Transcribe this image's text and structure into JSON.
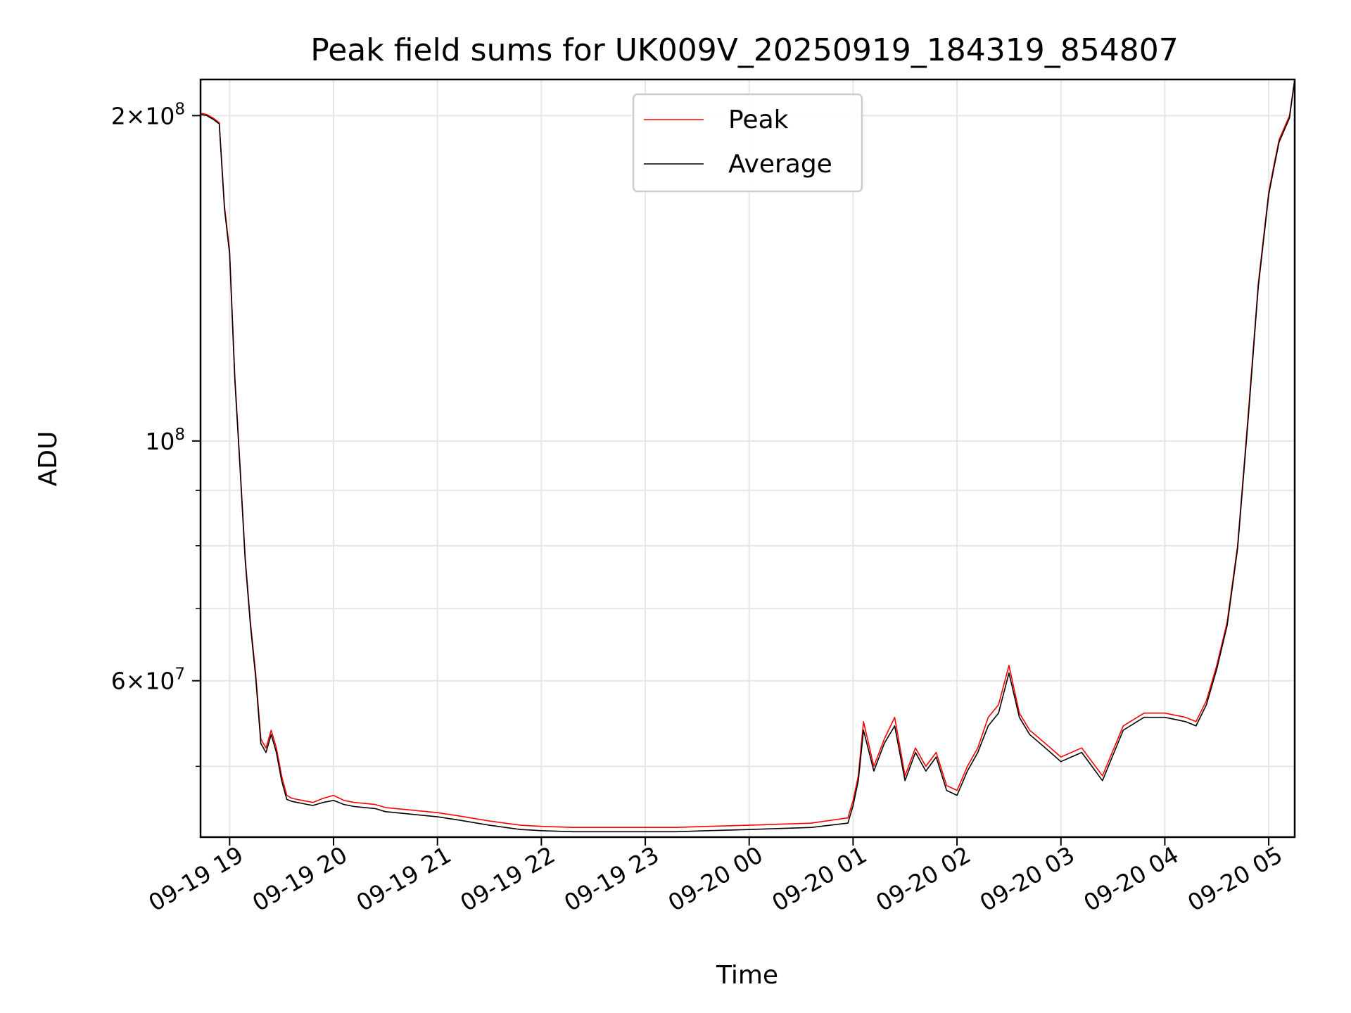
{
  "chart_data": {
    "type": "line",
    "title": "Peak field sums for UK009V_20250919_184319_854807",
    "xlabel": "Time",
    "ylabel": "ADU",
    "yscale": "log",
    "ylim": [
      43000000,
      216000000
    ],
    "xlim_hours": [
      18.72,
      29.25
    ],
    "grid": true,
    "legend_position": "upper center",
    "x_ticks": [
      {
        "label": "09-19 19",
        "hour": 19
      },
      {
        "label": "09-19 20",
        "hour": 20
      },
      {
        "label": "09-19 21",
        "hour": 21
      },
      {
        "label": "09-19 22",
        "hour": 22
      },
      {
        "label": "09-19 23",
        "hour": 23
      },
      {
        "label": "09-20 00",
        "hour": 24
      },
      {
        "label": "09-20 01",
        "hour": 25
      },
      {
        "label": "09-20 02",
        "hour": 26
      },
      {
        "label": "09-20 03",
        "hour": 27
      },
      {
        "label": "09-20 04",
        "hour": 28
      },
      {
        "label": "09-20 05",
        "hour": 29
      }
    ],
    "y_ticks_major": [
      {
        "value": 200000000,
        "mantissa": "2",
        "exponent": "8",
        "labeled": true
      },
      {
        "value": 100000000,
        "mantissa": "",
        "exponent": "8",
        "labeled": true
      },
      {
        "value": 60000000,
        "mantissa": "6",
        "exponent": "7",
        "labeled": true
      }
    ],
    "y_ticks_minor": [
      50000000,
      70000000,
      80000000,
      90000000
    ],
    "series": [
      {
        "name": "Peak",
        "color": "#ff0000",
        "hours": [
          18.72,
          18.78,
          18.84,
          18.9,
          18.95,
          19.0,
          19.05,
          19.1,
          19.15,
          19.2,
          19.25,
          19.3,
          19.35,
          19.4,
          19.45,
          19.5,
          19.55,
          19.6,
          19.65,
          19.7,
          19.75,
          19.8,
          19.9,
          20.0,
          20.1,
          20.2,
          20.3,
          20.4,
          20.5,
          20.6,
          20.7,
          20.8,
          21.0,
          21.2,
          21.5,
          21.8,
          22.0,
          22.3,
          22.6,
          23.0,
          23.3,
          23.6,
          24.0,
          24.3,
          24.6,
          24.95,
          25.0,
          25.05,
          25.1,
          25.2,
          25.3,
          25.4,
          25.5,
          25.6,
          25.7,
          25.8,
          25.9,
          26.0,
          26.1,
          26.2,
          26.3,
          26.4,
          26.5,
          26.6,
          26.7,
          26.8,
          26.9,
          27.0,
          27.2,
          27.4,
          27.6,
          27.8,
          28.0,
          28.2,
          28.3,
          28.4,
          28.5,
          28.6,
          28.7,
          28.8,
          28.9,
          29.0,
          29.05,
          29.1,
          29.2,
          29.25
        ],
        "values": [
          201000000,
          200500000,
          199000000,
          197000000,
          165000000,
          150000000,
          115000000,
          95000000,
          78000000,
          68000000,
          61000000,
          53000000,
          52000000,
          54000000,
          52000000,
          49000000,
          47000000,
          46700000,
          46600000,
          46500000,
          46400000,
          46300000,
          46700000,
          47000000,
          46500000,
          46300000,
          46200000,
          46100000,
          45800000,
          45700000,
          45600000,
          45500000,
          45300000,
          45000000,
          44500000,
          44100000,
          44000000,
          43900000,
          43900000,
          43900000,
          43900000,
          44000000,
          44100000,
          44200000,
          44300000,
          44800000,
          46500000,
          49000000,
          55000000,
          50000000,
          53000000,
          55500000,
          49000000,
          52000000,
          50000000,
          51500000,
          48000000,
          47500000,
          50000000,
          52000000,
          55500000,
          57000000,
          62000000,
          56000000,
          54000000,
          53000000,
          52000000,
          51000000,
          52000000,
          49000000,
          54500000,
          56000000,
          56000000,
          55500000,
          55000000,
          57500000,
          62000000,
          68000000,
          80000000,
          105000000,
          140000000,
          170000000,
          180000000,
          190000000,
          200000000,
          216000000
        ]
      },
      {
        "name": "Average",
        "color": "#000000",
        "hours": [
          18.72,
          18.78,
          18.84,
          18.9,
          18.95,
          19.0,
          19.05,
          19.1,
          19.15,
          19.2,
          19.25,
          19.3,
          19.35,
          19.4,
          19.45,
          19.5,
          19.55,
          19.6,
          19.65,
          19.7,
          19.75,
          19.8,
          19.9,
          20.0,
          20.1,
          20.2,
          20.3,
          20.4,
          20.5,
          20.6,
          20.7,
          20.8,
          21.0,
          21.2,
          21.5,
          21.8,
          22.0,
          22.3,
          22.6,
          23.0,
          23.3,
          23.6,
          24.0,
          24.3,
          24.6,
          24.95,
          25.0,
          25.05,
          25.1,
          25.2,
          25.3,
          25.4,
          25.5,
          25.6,
          25.7,
          25.8,
          25.9,
          26.0,
          26.1,
          26.2,
          26.3,
          26.4,
          26.5,
          26.6,
          26.7,
          26.8,
          26.9,
          27.0,
          27.2,
          27.4,
          27.6,
          27.8,
          28.0,
          28.2,
          28.3,
          28.4,
          28.5,
          28.6,
          28.7,
          28.8,
          28.9,
          29.0,
          29.05,
          29.1,
          29.2,
          29.25
        ],
        "values": [
          200500000,
          200000000,
          198500000,
          196500000,
          164000000,
          149000000,
          114000000,
          94500000,
          77500000,
          67500000,
          60500000,
          52500000,
          51500000,
          53500000,
          51500000,
          48500000,
          46600000,
          46400000,
          46300000,
          46200000,
          46100000,
          46000000,
          46300000,
          46500000,
          46100000,
          45900000,
          45800000,
          45700000,
          45400000,
          45300000,
          45200000,
          45100000,
          44900000,
          44600000,
          44100000,
          43700000,
          43600000,
          43500000,
          43500000,
          43500000,
          43500000,
          43600000,
          43700000,
          43800000,
          43900000,
          44300000,
          46000000,
          48500000,
          54000000,
          49500000,
          52500000,
          54500000,
          48500000,
          51500000,
          49500000,
          51000000,
          47500000,
          47000000,
          49500000,
          51500000,
          54500000,
          56000000,
          61000000,
          55500000,
          53500000,
          52500000,
          51500000,
          50500000,
          51500000,
          48500000,
          54000000,
          55500000,
          55500000,
          55000000,
          54500000,
          57000000,
          61500000,
          67500000,
          79500000,
          104000000,
          139000000,
          169000000,
          179000000,
          189000000,
          199000000,
          216000000
        ]
      }
    ]
  }
}
